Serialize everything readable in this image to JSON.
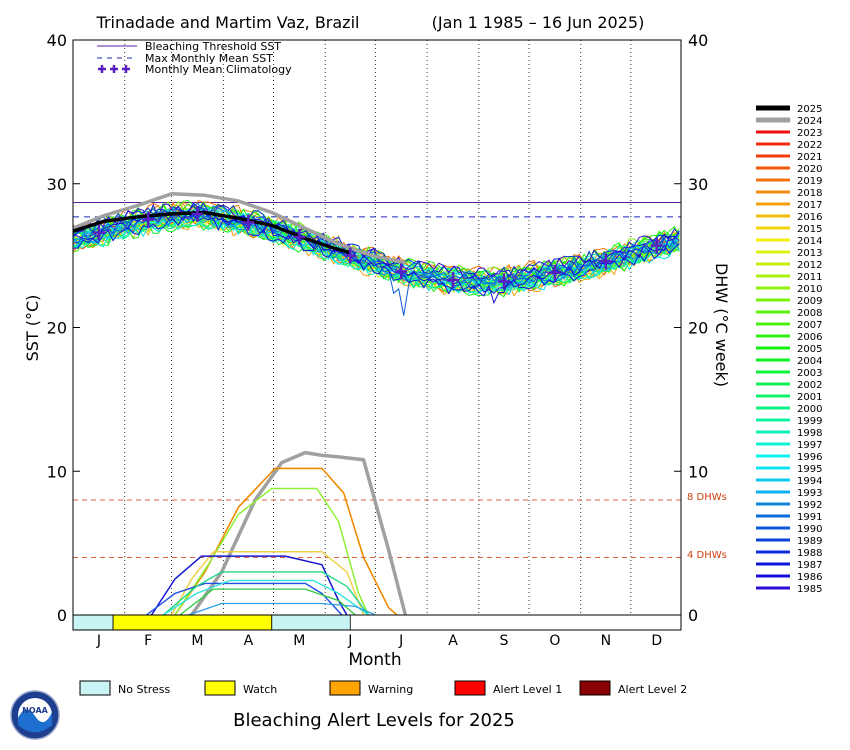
{
  "chart_data": {
    "type": "line",
    "title_location": "Trinadade and Martim Vaz, Brazil",
    "title_dates": "(Jan 1 1985 – 16 Jun 2025)",
    "xlabel": "Month",
    "ylabel_left": "SST (°C)",
    "ylabel_right": "DHW (°C week)",
    "months": [
      "J",
      "F",
      "M",
      "A",
      "M",
      "J",
      "J",
      "A",
      "S",
      "O",
      "N",
      "D"
    ],
    "ylim": [
      0,
      40
    ],
    "y_ticks": [
      0,
      10,
      20,
      30,
      40
    ],
    "grid": "vertical dotted lines at month boundaries",
    "legend_placement": "top-left",
    "reference_lines": {
      "bleaching_threshold_sst": 28.7,
      "max_monthly_mean_sst": 27.7,
      "legend_labels": [
        "Bleaching Threshold SST",
        "Max Monthly Mean SST",
        "Monthly Mean Climatology"
      ]
    },
    "dhw_thresholds": [
      {
        "value": 8,
        "label": "8 DHWs"
      },
      {
        "value": 4,
        "label": "4 DHWs"
      }
    ],
    "climatology": [
      26.6,
      27.5,
      27.9,
      27.3,
      26.3,
      25.0,
      23.9,
      23.3,
      23.2,
      23.8,
      24.6,
      25.7
    ],
    "sst_2025": {
      "doy": [
        1,
        20,
        40,
        60,
        80,
        100,
        120,
        140,
        155,
        167
      ],
      "values": [
        26.7,
        27.4,
        27.7,
        27.9,
        28.0,
        27.6,
        27.1,
        26.2,
        25.6,
        25.2
      ]
    },
    "sst_2024": {
      "doy": [
        1,
        20,
        40,
        60,
        80,
        100,
        120,
        140,
        160,
        180,
        200
      ],
      "values": [
        26.9,
        27.8,
        28.5,
        29.3,
        29.2,
        28.8,
        28.0,
        26.9,
        25.8,
        25.0,
        24.5
      ]
    },
    "dhw_curves": [
      {
        "year": "2024",
        "color": "#a0a0a0",
        "width": 3.5,
        "doy": [
          72,
          90,
          110,
          126,
          140,
          150,
          160,
          175,
          190,
          200
        ],
        "values": [
          0,
          3,
          8,
          10.6,
          11.3,
          11.1,
          11.0,
          10.8,
          4.5,
          0
        ]
      },
      {
        "year": "2017",
        "color": "#f08a00",
        "width": 1.6,
        "doy": [
          62,
          80,
          100,
          122,
          150,
          163,
          175,
          190,
          195
        ],
        "values": [
          0,
          3,
          7.5,
          10.2,
          10.2,
          8.5,
          4,
          0.5,
          0
        ]
      },
      {
        "year": "2010",
        "color": "#8ef033",
        "width": 1.5,
        "doy": [
          62,
          82,
          100,
          120,
          147,
          160,
          172,
          178
        ],
        "values": [
          0,
          3.5,
          7.0,
          8.8,
          8.8,
          6.5,
          1.5,
          0
        ]
      },
      {
        "year": "2016",
        "color": "#f0d24a",
        "width": 1.5,
        "doy": [
          60,
          72,
          85,
          150,
          165,
          175
        ],
        "values": [
          0,
          2.5,
          4.4,
          4.4,
          3,
          0
        ]
      },
      {
        "year": "1988",
        "color": "#1414d0",
        "width": 1.5,
        "doy": [
          48,
          62,
          78,
          128,
          150,
          160,
          165
        ],
        "values": [
          0,
          2.5,
          4.1,
          4.1,
          3.5,
          1,
          0
        ]
      },
      {
        "year": "1990",
        "color": "#1e50e6",
        "width": 1.4,
        "doy": [
          45,
          62,
          80,
          140,
          150,
          162
        ],
        "values": [
          0,
          1.5,
          2.2,
          2.2,
          1.5,
          0
        ]
      },
      {
        "year": "2001",
        "color": "#22d884",
        "width": 1.4,
        "doy": [
          55,
          75,
          90,
          150,
          165,
          178
        ],
        "values": [
          0,
          2,
          3.0,
          3.0,
          2,
          0
        ]
      },
      {
        "year": "1997",
        "color": "#2ee6dc",
        "width": 1.4,
        "doy": [
          55,
          75,
          95,
          145,
          160,
          178
        ],
        "values": [
          0,
          1.5,
          2.4,
          2.4,
          1.5,
          0
        ]
      },
      {
        "year": "1994",
        "color": "#30a0e8",
        "width": 1.3,
        "doy": [
          70,
          90,
          150,
          170,
          182
        ],
        "values": [
          0,
          0.8,
          0.8,
          0.6,
          0
        ]
      },
      {
        "year": "2006",
        "color": "#2ecc40",
        "width": 1.3,
        "doy": [
          65,
          85,
          140,
          160,
          170
        ],
        "values": [
          0,
          1.8,
          1.8,
          1.0,
          0
        ]
      }
    ],
    "alert_bar": [
      {
        "level": "No Stress",
        "doy_start": 1,
        "doy_end": 25
      },
      {
        "level": "Watch",
        "doy_start": 25,
        "doy_end": 120
      },
      {
        "level": "No Stress",
        "doy_start": 120,
        "doy_end": 167
      }
    ],
    "years_legend": [
      "2025",
      "2024",
      "2023",
      "2022",
      "2021",
      "2020",
      "2019",
      "2018",
      "2017",
      "2016",
      "2015",
      "2014",
      "2013",
      "2012",
      "2011",
      "2010",
      "2009",
      "2008",
      "2007",
      "2006",
      "2005",
      "2004",
      "2003",
      "2002",
      "2001",
      "2000",
      "1999",
      "1998",
      "1997",
      "1996",
      "1995",
      "1994",
      "1993",
      "1992",
      "1991",
      "1990",
      "1989",
      "1988",
      "1987",
      "1986",
      "1985"
    ],
    "alert_levels": [
      {
        "label": "No Stress",
        "color": "#c8f4f4"
      },
      {
        "label": "Watch",
        "color": "#ffff00"
      },
      {
        "label": "Warning",
        "color": "#ffa500"
      },
      {
        "label": "Alert Level 1",
        "color": "#ff0000"
      },
      {
        "label": "Alert Level 2",
        "color": "#8b0000"
      }
    ],
    "footer_title": "Bleaching Alert Levels for 2025",
    "logo_text": "NOAA"
  }
}
